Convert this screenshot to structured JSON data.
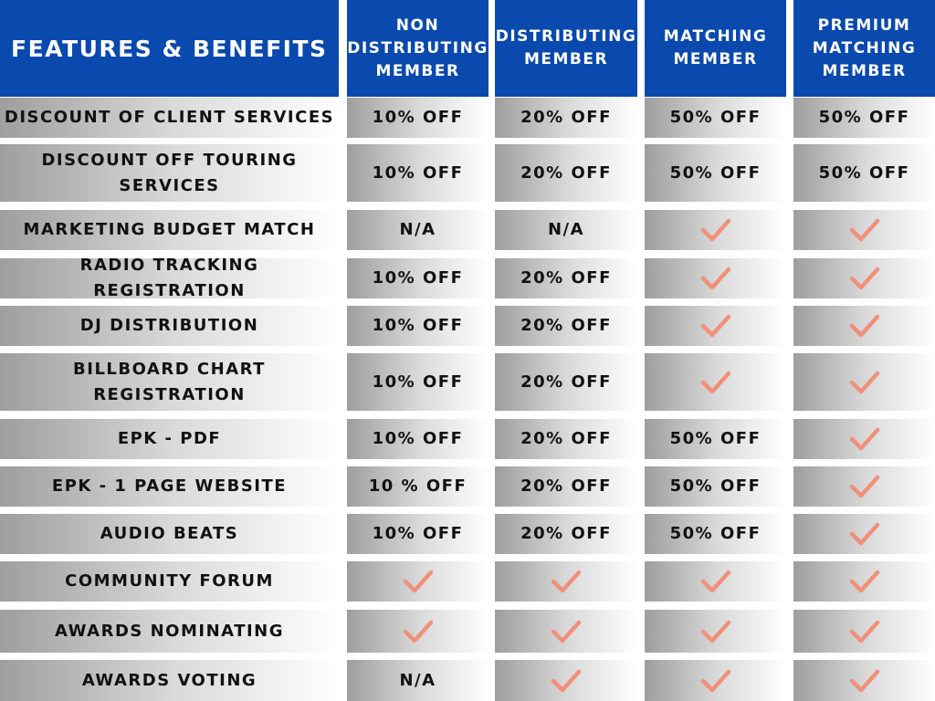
{
  "colors": {
    "header": "#0a49ad",
    "check": "#f0907a"
  },
  "header": {
    "title": "FEATURES & BENEFITS",
    "columns": [
      "NON DISTRIBUTING MEMBER",
      "DISTRIBUTING MEMBER",
      "MATCHING MEMBER",
      "PREMIUM MATCHING MEMBER"
    ]
  },
  "rows": [
    {
      "feature": "DISCOUNT OF CLIENT SERVICES",
      "values": [
        "10% OFF",
        "20% OFF",
        "50% OFF",
        "50% OFF"
      ]
    },
    {
      "feature": "DISCOUNT OFF TOURING SERVICES",
      "values": [
        "10% OFF",
        "20% OFF",
        "50% OFF",
        "50% OFF"
      ]
    },
    {
      "feature": "MARKETING BUDGET MATCH",
      "values": [
        "N/A",
        "N/A",
        "check",
        "check"
      ]
    },
    {
      "feature": "RADIO TRACKING REGISTRATION",
      "values": [
        "10% OFF",
        "20% OFF",
        "check",
        "check"
      ]
    },
    {
      "feature": "DJ DISTRIBUTION",
      "values": [
        "10% OFF",
        "20% OFF",
        "check",
        "check"
      ]
    },
    {
      "feature": "BILLBOARD CHART REGISTRATION",
      "values": [
        "10% OFF",
        "20% OFF",
        "check",
        "check"
      ]
    },
    {
      "feature": "EPK - PDF",
      "values": [
        "10% OFF",
        "20% OFF",
        "50% OFF",
        "check"
      ]
    },
    {
      "feature": "EPK - 1 PAGE WEBSITE",
      "values": [
        "10 % OFF",
        "20% OFF",
        "50% OFF",
        "check"
      ]
    },
    {
      "feature": "AUDIO BEATS",
      "values": [
        "10% OFF",
        "20% OFF",
        "50% OFF",
        "check"
      ]
    },
    {
      "feature": "COMMUNITY FORUM",
      "values": [
        "check",
        "check",
        "check",
        "check"
      ]
    },
    {
      "feature": "AWARDS NOMINATING",
      "values": [
        "check",
        "check",
        "check",
        "check"
      ]
    },
    {
      "feature": "AWARDS VOTING",
      "values": [
        "N/A",
        "check",
        "check",
        "check"
      ]
    }
  ]
}
